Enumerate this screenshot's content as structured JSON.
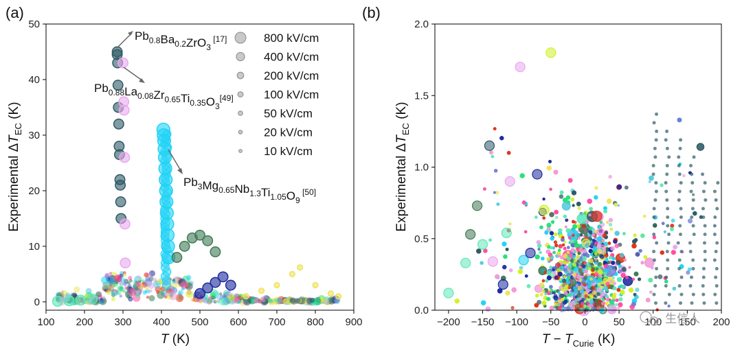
{
  "figure_labels": {
    "a": "(a)",
    "b": "(b)"
  },
  "watermark": "生信人",
  "chart_data": [
    {
      "id": "a",
      "type": "scatter",
      "xlabel": "T (K)",
      "ylabel": "Experimental ΔT_EC (K)",
      "xlim": [
        100,
        900
      ],
      "ylim": [
        -1.5,
        50
      ],
      "xticks": [
        "100",
        "200",
        "300",
        "400",
        "500",
        "600",
        "700",
        "800",
        "900"
      ],
      "yticks": [
        "0",
        "10",
        "20",
        "30",
        "40",
        "50"
      ],
      "legend_title_position": "top-right",
      "legend": [
        {
          "label": "800 kV/cm",
          "field": 800
        },
        {
          "label": "400 kV/cm",
          "field": 400
        },
        {
          "label": "200 kV/cm",
          "field": 200
        },
        {
          "label": "100 kV/cm",
          "field": 100
        },
        {
          "label": "50 kV/cm",
          "field": 50
        },
        {
          "label": "20 kV/cm",
          "field": 20
        },
        {
          "label": "10 kV/cm",
          "field": 10
        }
      ],
      "annotations": [
        {
          "base": "Pb",
          "parts": [
            [
              "Pb",
              ""
            ],
            [
              "0.8",
              "sub"
            ],
            [
              "Ba",
              ""
            ],
            [
              "0.2",
              "sub"
            ],
            [
              "ZrO",
              ""
            ],
            [
              "3",
              "sub"
            ],
            [
              " [17]",
              "sup"
            ]
          ],
          "points_to": [
            285,
            45
          ]
        },
        {
          "base": "Pb",
          "parts": [
            [
              "Pb",
              ""
            ],
            [
              "0.88",
              "sub"
            ],
            [
              "La",
              ""
            ],
            [
              "0.08",
              "sub"
            ],
            [
              "Zr",
              ""
            ],
            [
              "0.65",
              "sub"
            ],
            [
              "Ti",
              ""
            ],
            [
              "0.35",
              "sub"
            ],
            [
              "O",
              ""
            ],
            [
              "3",
              "sub"
            ],
            [
              "[49]",
              "sup"
            ]
          ],
          "points_to": [
            300,
            43
          ]
        },
        {
          "base": "Pb",
          "parts": [
            [
              "Pb",
              ""
            ],
            [
              "3",
              "sub"
            ],
            [
              "Mg",
              ""
            ],
            [
              "0.65",
              "sub"
            ],
            [
              "Nb",
              ""
            ],
            [
              "1.3",
              "sub"
            ],
            [
              "Ti",
              ""
            ],
            [
              "1.05",
              "sub"
            ],
            [
              "O",
              ""
            ],
            [
              "9",
              "sub"
            ],
            [
              " [50]",
              "sup"
            ]
          ],
          "points_to": [
            415,
            27
          ]
        }
      ],
      "series": [
        {
          "name": "Pb0.8Ba0.2ZrO3",
          "color": "#2e5a66",
          "x": [
            285,
            285,
            286,
            287,
            288,
            289,
            290,
            291,
            292,
            293,
            294,
            295
          ],
          "y": [
            45,
            44.5,
            43,
            39,
            35,
            32,
            28,
            26.5,
            22,
            21,
            18,
            15
          ],
          "field": 400
        },
        {
          "name": "Pb0.88La0.08Zr0.65Ti0.35O3",
          "color": "#e9a8ef",
          "x": [
            300,
            302,
            303,
            304,
            305,
            306
          ],
          "y": [
            43,
            36,
            34.5,
            26,
            14,
            7
          ],
          "field": 400
        },
        {
          "name": "Pb3Mg0.65Nb1.3Ti1.05O9",
          "color": "#22d3f5",
          "x": [
            405,
            406,
            407,
            408,
            409,
            410,
            411,
            412,
            413,
            414,
            415,
            416,
            417,
            418
          ],
          "y": [
            31,
            30,
            29,
            27.5,
            26,
            24,
            22,
            20,
            18,
            16,
            14,
            12,
            10,
            8
          ],
          "field": 800
        },
        {
          "name": "green cluster",
          "color": "#3f7a55",
          "x": [
            440,
            460,
            480,
            500,
            520,
            540
          ],
          "y": [
            8,
            10,
            11.5,
            12,
            11,
            9
          ],
          "field": 400
        },
        {
          "name": "navy cluster",
          "color": "#1b2a9c",
          "x": [
            500,
            520,
            540,
            560,
            580
          ],
          "y": [
            1.5,
            2.5,
            3.5,
            4.5,
            3
          ],
          "field": 400
        },
        {
          "name": "yellow cluster",
          "color": "#eee35a",
          "x": [
            620,
            660,
            700,
            740,
            760,
            800,
            840,
            860
          ],
          "y": [
            1,
            2,
            3,
            5,
            6.2,
            3,
            1.5,
            1
          ],
          "field": 50
        },
        {
          "name": "teal baseline",
          "color": "#5ee8b8",
          "x": [
            130,
            160,
            190,
            220
          ],
          "y": [
            0.1,
            0.2,
            0.3,
            0.5
          ],
          "field": 400
        }
      ]
    },
    {
      "id": "b",
      "type": "scatter",
      "xlabel": "T − T_Curie (K)",
      "ylabel": "Experimental ΔT_EC (K)",
      "xlim": [
        -220,
        200
      ],
      "ylim": [
        0,
        2.0
      ],
      "xticks": [
        "−200",
        "−150",
        "−100",
        "−50",
        "0",
        "50",
        "100",
        "150",
        "200"
      ],
      "yticks": [
        "0.0",
        "0.5",
        "1.0",
        "1.5",
        "2.0"
      ],
      "series_note": "dense multicolour cloud concentrated near T − T_Curie = 0"
    }
  ],
  "colors": {
    "palette": [
      "#2e5a66",
      "#22d3f5",
      "#e9a8ef",
      "#3f7a55",
      "#1b2a9c",
      "#eee35a",
      "#5ee8b8",
      "#d2f02a",
      "#ff4fa0",
      "#e0331a",
      "#6a7fd8",
      "#55c9e0",
      "#f09bd6",
      "#28e07a"
    ]
  }
}
